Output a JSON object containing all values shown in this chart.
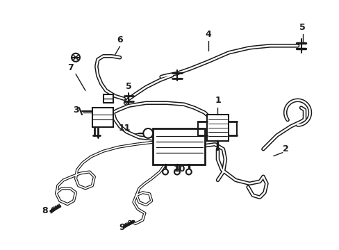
{
  "background_color": "#ffffff",
  "line_color": "#1a1a1a",
  "fig_width": 4.89,
  "fig_height": 3.6,
  "dpi": 100,
  "tube_outer_lw": 2.5,
  "tube_inner_lw": 1.2,
  "label_fontsize": 9
}
